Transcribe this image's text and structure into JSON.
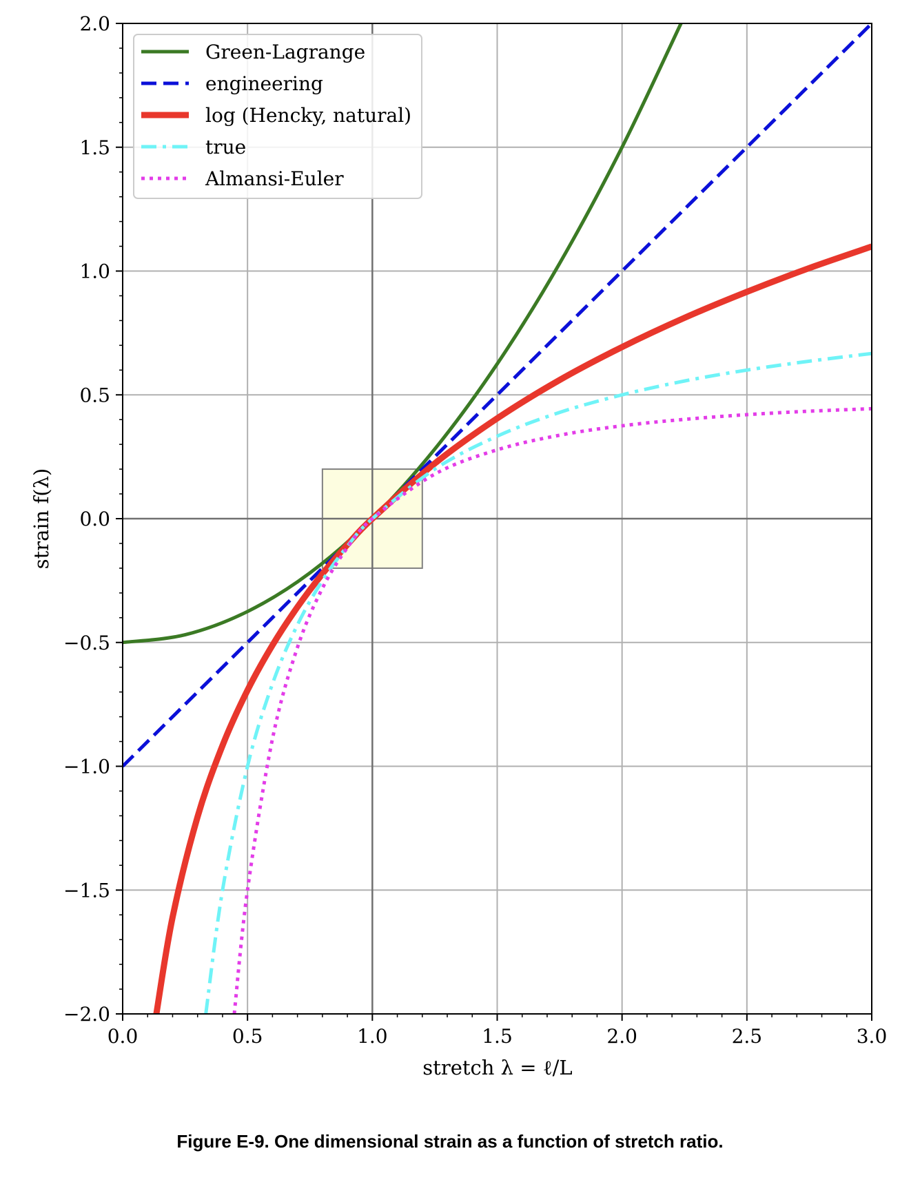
{
  "chart_data": {
    "type": "line",
    "title": "",
    "xlabel": "stretch λ = ℓ/L",
    "ylabel": "strain f(λ)",
    "xlim": [
      0,
      3
    ],
    "ylim": [
      -2,
      2
    ],
    "xticks": [
      "0.0",
      "0.5",
      "1.0",
      "1.5",
      "2.0",
      "2.5",
      "3.0"
    ],
    "yticks": [
      "−2.0",
      "−1.5",
      "−1.0",
      "−0.5",
      "0.0",
      "0.5",
      "1.0",
      "1.5",
      "2.0"
    ],
    "grid": true,
    "legend_position": "top-left",
    "highlight_box": {
      "x": [
        0.8,
        1.2
      ],
      "y": [
        -0.2,
        0.2
      ],
      "color": "#fdfde0"
    },
    "series": [
      {
        "name": "Green-Lagrange",
        "color": "#3b7a24",
        "style": "solid",
        "x": [
          0,
          0.25,
          0.5,
          0.75,
          1.0,
          1.25,
          1.5,
          1.75,
          2.0,
          2.236
        ],
        "y": [
          -0.5,
          -0.469,
          -0.375,
          -0.219,
          0,
          0.281,
          0.625,
          1.031,
          1.5,
          2.0
        ]
      },
      {
        "name": "engineering",
        "color": "#0b10d8",
        "style": "dashed",
        "x": [
          0,
          0.5,
          1.0,
          1.5,
          2.0,
          2.5,
          3.0
        ],
        "y": [
          -1.0,
          -0.5,
          0,
          0.5,
          1.0,
          1.5,
          2.0
        ]
      },
      {
        "name": "log (Hencky, natural)",
        "color": "#e8372c",
        "style": "solid-thick",
        "x": [
          0.135,
          0.2,
          0.3,
          0.4,
          0.5,
          0.6,
          0.7,
          0.8,
          0.9,
          1.0,
          1.25,
          1.5,
          1.75,
          2.0,
          2.25,
          2.5,
          2.75,
          3.0
        ],
        "y": [
          -2.0,
          -1.609,
          -1.204,
          -0.916,
          -0.693,
          -0.511,
          -0.357,
          -0.223,
          -0.105,
          0,
          0.223,
          0.405,
          0.56,
          0.693,
          0.811,
          0.916,
          1.012,
          1.099
        ]
      },
      {
        "name": "true",
        "color": "#6ff3f7",
        "style": "dashdot",
        "x": [
          0.333,
          0.4,
          0.5,
          0.6,
          0.7,
          0.8,
          0.9,
          1.0,
          1.25,
          1.5,
          1.75,
          2.0,
          2.25,
          2.5,
          2.75,
          3.0
        ],
        "y": [
          -2.0,
          -1.5,
          -1.0,
          -0.667,
          -0.429,
          -0.25,
          -0.111,
          0,
          0.2,
          0.333,
          0.429,
          0.5,
          0.556,
          0.6,
          0.636,
          0.667
        ]
      },
      {
        "name": "Almansi-Euler",
        "color": "#e33de8",
        "style": "dotted",
        "x": [
          0.447,
          0.5,
          0.6,
          0.7,
          0.8,
          0.9,
          1.0,
          1.25,
          1.5,
          1.75,
          2.0,
          2.25,
          2.5,
          2.75,
          3.0
        ],
        "y": [
          -2.0,
          -1.5,
          -0.889,
          -0.52,
          -0.281,
          -0.117,
          0,
          0.18,
          0.278,
          0.337,
          0.375,
          0.401,
          0.42,
          0.434,
          0.444
        ]
      }
    ]
  },
  "caption": "Figure E-9. One dimensional strain as a function of stretch ratio."
}
